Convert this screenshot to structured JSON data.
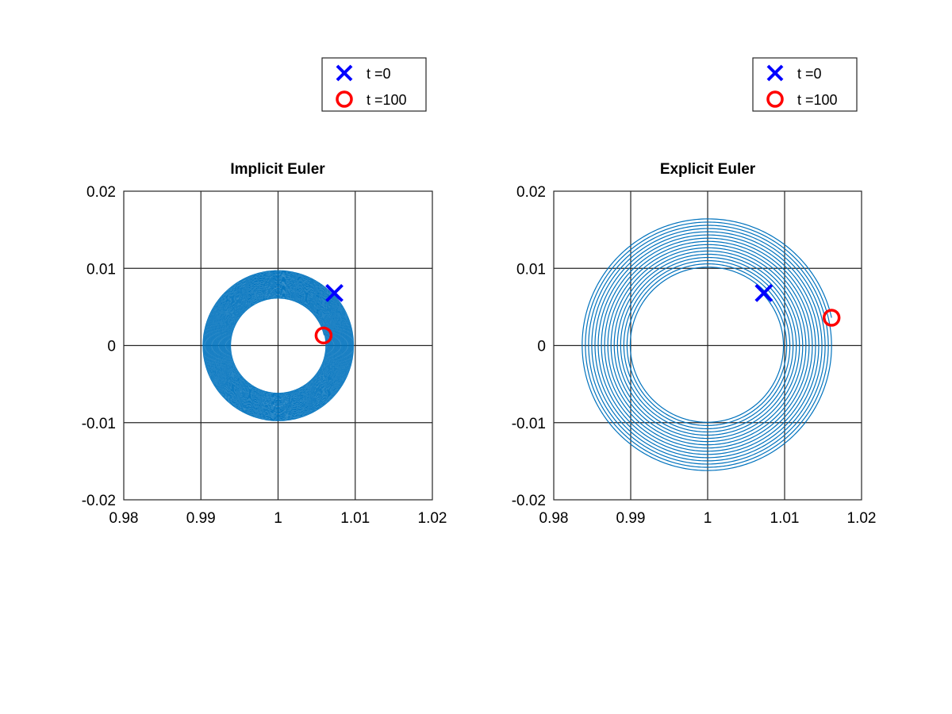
{
  "figure": {
    "background": "#ffffff",
    "trajectory_color": "#0072bd",
    "start_marker_color": "#0000ff",
    "end_marker_color": "#ff0000",
    "grid_color": "#262626"
  },
  "chart_data": [
    {
      "type": "line",
      "title": "Implicit Euler",
      "xlabel": "",
      "ylabel": "",
      "xlim": [
        0.98,
        1.02
      ],
      "ylim": [
        -0.02,
        0.02
      ],
      "xticks": [
        0.98,
        0.99,
        1,
        1.01,
        1.02
      ],
      "xtick_labels": [
        "0.98",
        "0.99",
        "1",
        "1.01",
        "1.02"
      ],
      "yticks": [
        -0.02,
        -0.01,
        0,
        0.01,
        0.02
      ],
      "ytick_labels": [
        "-0.02",
        "-0.01",
        "0",
        "0.01",
        "0.02"
      ],
      "grid": true,
      "legend_position": "above-right",
      "trajectory": {
        "center": [
          1.0,
          0.0
        ],
        "start_radius": 0.0098,
        "end_radius": 0.0061,
        "behavior": "inward spiral",
        "turns": 40
      },
      "markers": [
        {
          "label": "t =0",
          "symbol": "x",
          "x": 1.0073,
          "y": 0.0068
        },
        {
          "label": "t =100",
          "symbol": "o",
          "x": 1.0059,
          "y": 0.0013
        }
      ]
    },
    {
      "type": "line",
      "title": "Explicit Euler",
      "xlabel": "",
      "ylabel": "",
      "xlim": [
        0.98,
        1.02
      ],
      "ylim": [
        -0.02,
        0.02
      ],
      "xticks": [
        0.98,
        0.99,
        1,
        1.01,
        1.02
      ],
      "xtick_labels": [
        "0.98",
        "0.99",
        "1",
        "1.01",
        "1.02"
      ],
      "yticks": [
        -0.02,
        -0.01,
        0,
        0.01,
        0.02
      ],
      "ytick_labels": [
        "-0.02",
        "-0.01",
        "0",
        "0.01",
        "0.02"
      ],
      "grid": true,
      "legend_position": "above-right",
      "trajectory": {
        "center": [
          1.0,
          0.0
        ],
        "start_radius": 0.0098,
        "end_radius": 0.0165,
        "behavior": "outward spiral",
        "turns": 16
      },
      "markers": [
        {
          "label": "t =0",
          "symbol": "x",
          "x": 1.0073,
          "y": 0.0068
        },
        {
          "label": "t =100",
          "symbol": "o",
          "x": 1.0161,
          "y": 0.0036
        }
      ]
    }
  ]
}
